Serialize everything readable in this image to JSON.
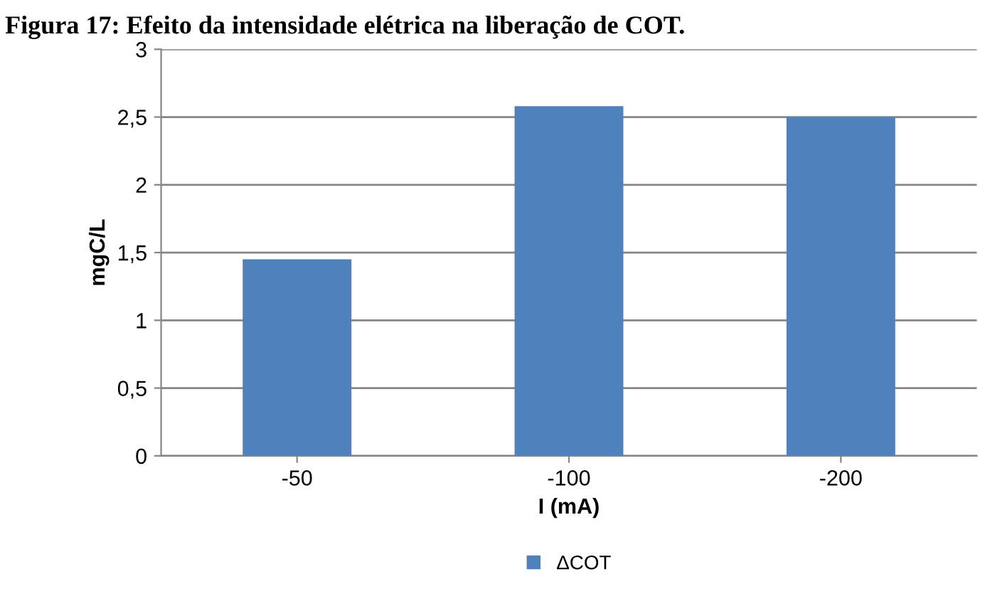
{
  "chart_data": {
    "type": "bar",
    "title": "Figura 17: Efeito da intensidade elétrica na liberação de COT.",
    "xlabel": "I (mA)",
    "ylabel": "mgC/L",
    "categories": [
      "-50",
      "-100",
      "-200"
    ],
    "series": [
      {
        "name": "ΔCOT",
        "color": "#4f81bd",
        "values": [
          1.45,
          2.58,
          2.5
        ]
      }
    ],
    "ylim": [
      0,
      3
    ],
    "yticks": [
      0,
      {
        "value": 0.5,
        "label": "0,5"
      },
      1,
      {
        "value": 1.5,
        "label": "1,5"
      },
      2,
      {
        "value": 2.5,
        "label": "2,5"
      },
      3
    ],
    "grid": "y",
    "legend": "bottom"
  }
}
